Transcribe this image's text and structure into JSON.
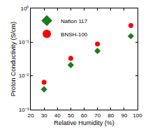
{
  "chart_data": {
    "type": "scatter",
    "x_label": "Relative Humidity (%)",
    "y_label": "Proton Conductivity (S/cm)",
    "log": "y",
    "legend": "top-left",
    "grid": false,
    "xlim": [
      20,
      100
    ],
    "xticks": [
      20,
      30,
      40,
      50,
      60,
      70,
      80,
      90,
      100
    ],
    "ylim": [
      0.001,
      1
    ],
    "yticks": [
      {
        "value": 0.001,
        "label": "10⁻³"
      },
      {
        "value": 0.01,
        "label": "10⁻²"
      },
      {
        "value": 0.1,
        "label": "10⁻¹"
      },
      {
        "value": 1,
        "label": "10⁰"
      }
    ],
    "series": [
      {
        "name": "Nafion 117",
        "color": "#1e7a1e",
        "marker": "diamond",
        "x": [
          30,
          50,
          70,
          95
        ],
        "values": [
          0.004,
          0.021,
          0.055,
          0.15
        ]
      },
      {
        "name": "BNSH-100",
        "color": "#ff0000",
        "marker": "circle",
        "x": [
          30,
          50,
          70,
          95
        ],
        "values": [
          0.0065,
          0.033,
          0.088,
          0.31
        ]
      }
    ]
  }
}
